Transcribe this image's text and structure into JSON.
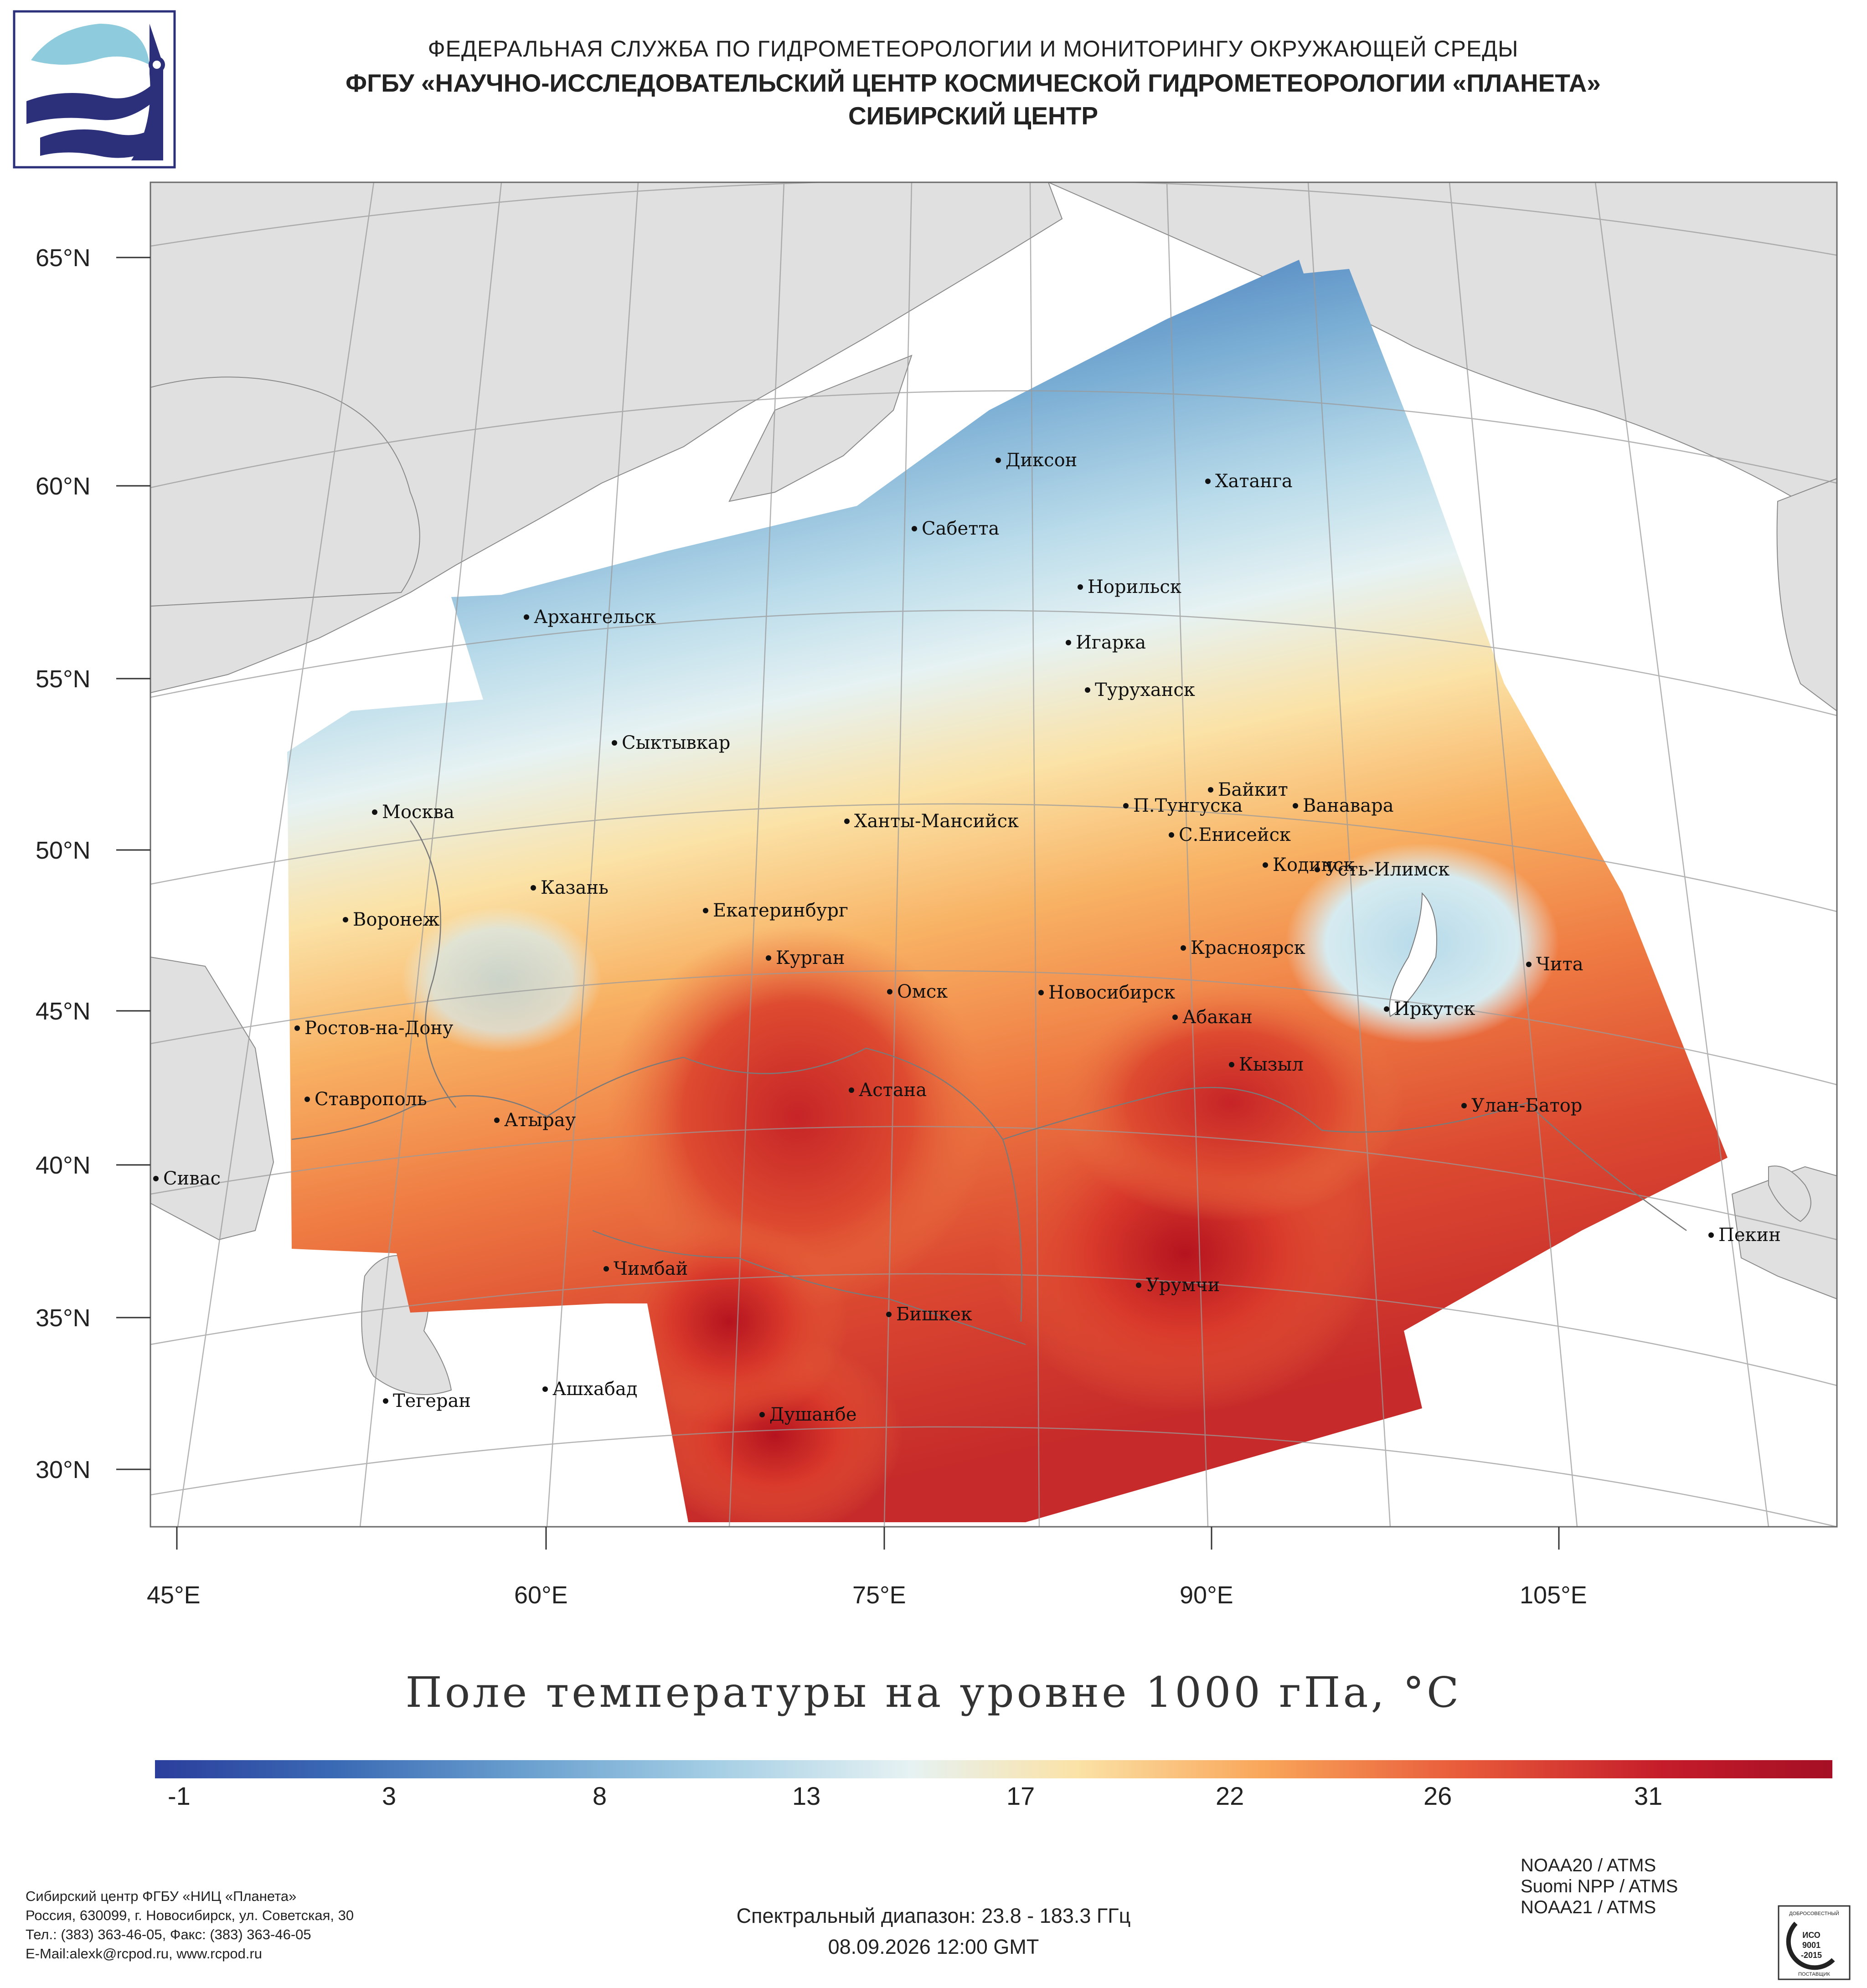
{
  "header": {
    "line1": "ФЕДЕРАЛЬНАЯ СЛУЖБА ПО ГИДРОМЕТЕОРОЛОГИИ И МОНИТОРИНГУ ОКРУЖАЮЩЕЙ СРЕДЫ",
    "line2": "ФГБУ «НАУЧНО-ИССЛЕДОВАТЕЛЬСКИЙ ЦЕНТР КОСМИЧЕСКОЙ ГИДРОМЕТЕОРОЛОГИИ «ПЛАНЕТА»",
    "line3": "СИБИРСКИЙ ЦЕНТР"
  },
  "map": {
    "lat_labels": [
      "65°N",
      "60°N",
      "55°N",
      "50°N",
      "45°N",
      "40°N",
      "35°N",
      "30°N"
    ],
    "lon_labels": [
      "45°E",
      "60°E",
      "75°E",
      "90°E",
      "105°E"
    ],
    "cities": [
      "Диксон",
      "Хатанга",
      "Сабетта",
      "Норильск",
      "Архангельск",
      "Игарка",
      "Туруханск",
      "Сыктывкар",
      "Байкит",
      "П.Тунгуска",
      "Ванавара",
      "Москва",
      "Ханты-Мансийск",
      "С.Енисейск",
      "Кодинск",
      "Усть-Илимск",
      "Казань",
      "Екатеринбург",
      "Воронеж",
      "Красноярск",
      "Курган",
      "Чита",
      "Омск",
      "Новосибирск",
      "Иркутск",
      "Абакан",
      "Ростов-на-Дону",
      "Кызыл",
      "Астана",
      "Ставрополь",
      "Улан-Батор",
      "Атырау",
      "Сивас",
      "Пекин",
      "Чимбай",
      "Урумчи",
      "Бишкек",
      "Ашхабад",
      "Тегеран",
      "Душанбе"
    ],
    "colors": {
      "land": "#e0e0e0",
      "sea": "#ffffff",
      "border": "#7a7a7a",
      "grid": "#9a9a9a"
    }
  },
  "title": "Поле температуры на уровне 1000 гПа, °С",
  "colorbar": {
    "ticks": [
      "-1",
      "3",
      "8",
      "13",
      "17",
      "22",
      "26",
      "31"
    ],
    "colors": [
      "#2b3e9c",
      "#3b6bb5",
      "#6aa0cf",
      "#a3cde4",
      "#e6f2f3",
      "#fbe2a6",
      "#f9a65a",
      "#e85a3a",
      "#c41c2a",
      "#a50f25"
    ]
  },
  "footer": {
    "org": [
      "Сибирский центр ФГБУ «НИЦ «Планета»",
      "Россия, 630099, г. Новосибирск, ул. Советская, 30",
      "Тел.: (383) 363-46-05, Факс: (383) 363-46-05",
      "E-Mail:alexk@rcpod.ru, www.rcpod.ru"
    ],
    "spectral": "Спектральный диапазон: 23.8 - 183.3 ГГц",
    "datetime": "08.09.2026 12:00 GMT",
    "satellites": [
      "NOAA20 / ATMS",
      "Suomi NPP / ATMS",
      "NOAA21 / ATMS"
    ],
    "iso": {
      "top": "ДОБРОСОВЕСТНЫЙ",
      "l1": "ИСО",
      "l2": "9001",
      "l3": "-2015",
      "bottom": "ПОСТАВЩИК"
    }
  }
}
